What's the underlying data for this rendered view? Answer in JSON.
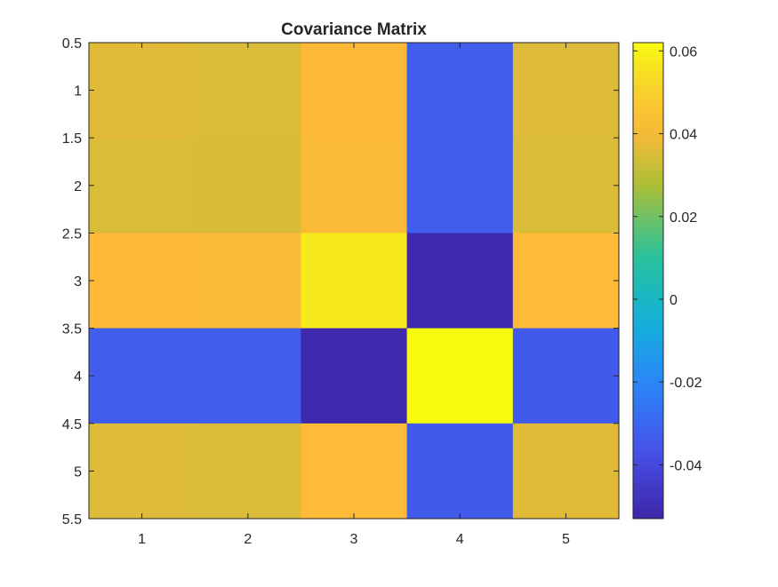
{
  "chart_data": {
    "type": "heatmap",
    "title": "Covariance Matrix",
    "xlabel": "",
    "ylabel": "",
    "x_categories": [
      1,
      2,
      3,
      4,
      5
    ],
    "y_categories": [
      1,
      2,
      3,
      4,
      5
    ],
    "xticks": [
      1,
      2,
      3,
      4,
      5
    ],
    "xtick_labels": [
      "1",
      "2",
      "3",
      "4",
      "5"
    ],
    "xlim": [
      0.5,
      5.5
    ],
    "yticks": [
      0.5,
      1,
      1.5,
      2,
      2.5,
      3,
      3.5,
      4,
      4.5,
      5,
      5.5
    ],
    "ytick_labels": [
      "0.5",
      "1",
      "1.5",
      "2",
      "2.5",
      "3",
      "3.5",
      "4",
      "4.5",
      "5",
      "5.5"
    ],
    "ylim": [
      0.5,
      5.5
    ],
    "y_direction": "reverse",
    "values": [
      [
        0.0365,
        0.0355,
        0.0415,
        -0.033,
        0.036
      ],
      [
        0.0355,
        0.035,
        0.041,
        -0.033,
        0.0355
      ],
      [
        0.0415,
        0.041,
        0.0575,
        -0.052,
        0.042
      ],
      [
        -0.033,
        -0.033,
        -0.052,
        0.062,
        -0.034
      ],
      [
        0.036,
        0.0355,
        0.042,
        -0.034,
        0.0365
      ]
    ],
    "colormap": "parula",
    "colorbar": {
      "location": "right",
      "clim": [
        -0.053,
        0.062
      ],
      "ticks": [
        -0.04,
        -0.02,
        0,
        0.02,
        0.04,
        0.06
      ],
      "tick_labels": [
        "-0.04",
        "-0.02",
        "0",
        "0.02",
        "0.04",
        "0.06"
      ]
    },
    "grid": false
  }
}
